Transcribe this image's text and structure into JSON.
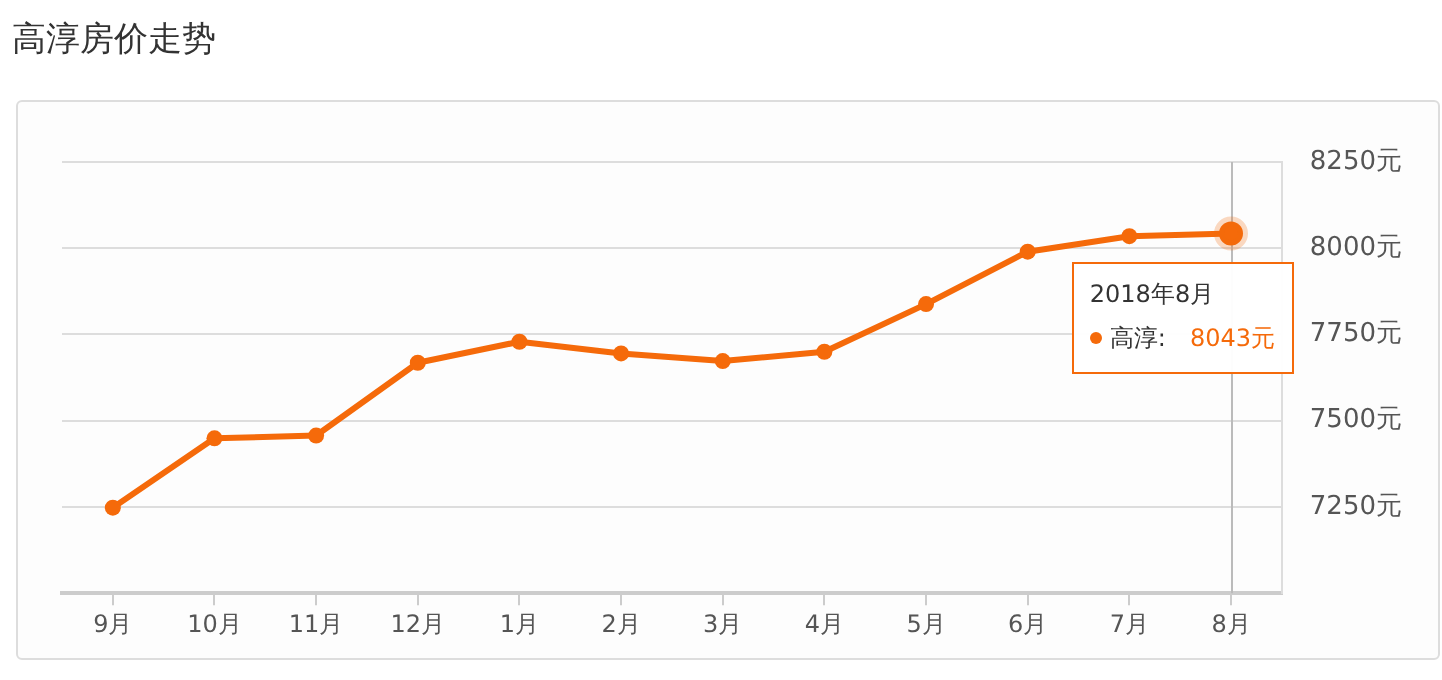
{
  "chart_data": {
    "type": "line",
    "title": "高淳房价走势",
    "categories": [
      "9月",
      "10月",
      "11月",
      "12月",
      "1月",
      "2月",
      "3月",
      "4月",
      "5月",
      "6月",
      "7月",
      "8月"
    ],
    "series": [
      {
        "name": "高淳:",
        "color": "#f56a0a",
        "values": [
          7248,
          7449,
          7457,
          7668,
          7729,
          7695,
          7673,
          7700,
          7838,
          7990,
          8035,
          8043
        ]
      }
    ],
    "ylim": [
      7000,
      8250
    ],
    "yticks": [
      {
        "value": 7250,
        "label": "7250元"
      },
      {
        "value": 7500,
        "label": "7500元"
      },
      {
        "value": 7750,
        "label": "7750元"
      },
      {
        "value": 8000,
        "label": "8000元"
      },
      {
        "value": 8250,
        "label": "8250元"
      }
    ],
    "ref_lines": [
      {
        "axis": "x",
        "value": "8月",
        "color": "#bbbbbb"
      }
    ],
    "annotations": [
      {
        "text": "2018年8月",
        "x": "8月",
        "y": 8043
      },
      "8043元"
    ],
    "grid": "y",
    "legend": "right",
    "marker": "circle",
    "line_style": "solid"
  }
}
